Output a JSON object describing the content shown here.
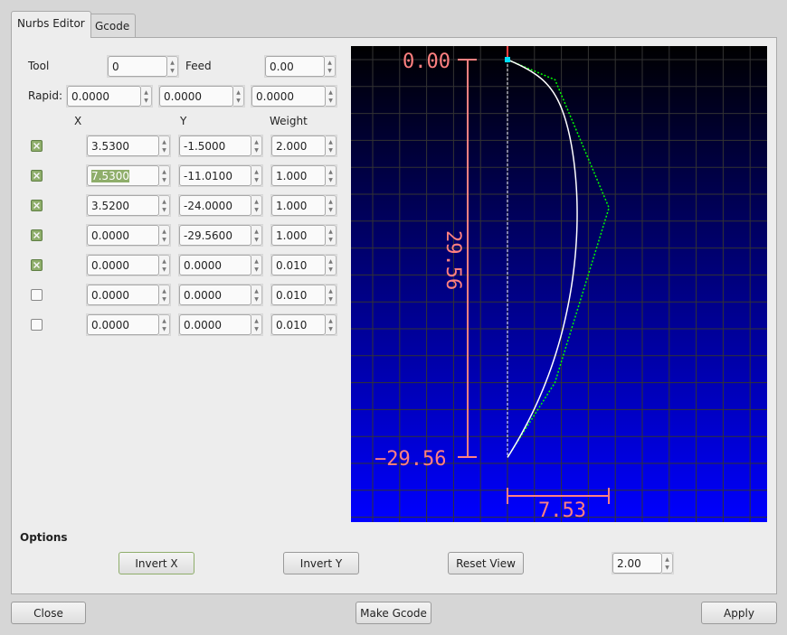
{
  "tabs": [
    {
      "label": "Nurbs Editor",
      "active": true
    },
    {
      "label": "Gcode",
      "active": false
    }
  ],
  "tool": {
    "label": "Tool",
    "value": "0"
  },
  "feed": {
    "label": "Feed",
    "value": "0.00"
  },
  "rapid": {
    "label": "Rapid:",
    "values": [
      "0.0000",
      "0.0000",
      "0.0000"
    ]
  },
  "columns": {
    "x": "X",
    "y": "Y",
    "weight": "Weight"
  },
  "points": [
    {
      "enabled": true,
      "x": "3.5300",
      "y": "-1.5000",
      "w": "2.000"
    },
    {
      "enabled": true,
      "x": "7.5300",
      "y": "-11.0100",
      "w": "1.000",
      "x_selected": true
    },
    {
      "enabled": true,
      "x": "3.5200",
      "y": "-24.0000",
      "w": "1.000"
    },
    {
      "enabled": true,
      "x": "0.0000",
      "y": "-29.5600",
      "w": "1.000"
    },
    {
      "enabled": true,
      "x": "0.0000",
      "y": "0.0000",
      "w": "0.010"
    },
    {
      "enabled": false,
      "x": "0.0000",
      "y": "0.0000",
      "w": "0.010"
    },
    {
      "enabled": false,
      "x": "0.0000",
      "y": "0.0000",
      "w": "0.010"
    }
  ],
  "view": {
    "top_label": "0.00",
    "bottom_label": "−29.56",
    "height_label": "29.56",
    "width_label": "7.53",
    "colors": {
      "dimension": "#ff8080",
      "curve": "#ffffff",
      "control_polygon": "#00ff00",
      "grid": "#333333",
      "bg_top": "#000000",
      "bg_bottom": "#0000ff"
    }
  },
  "options": {
    "title": "Options",
    "invert_x": "Invert X",
    "invert_y": "Invert Y",
    "reset_view": "Reset View",
    "scale": "2.00"
  },
  "footer": {
    "close": "Close",
    "make_gcode": "Make Gcode",
    "apply": "Apply"
  }
}
